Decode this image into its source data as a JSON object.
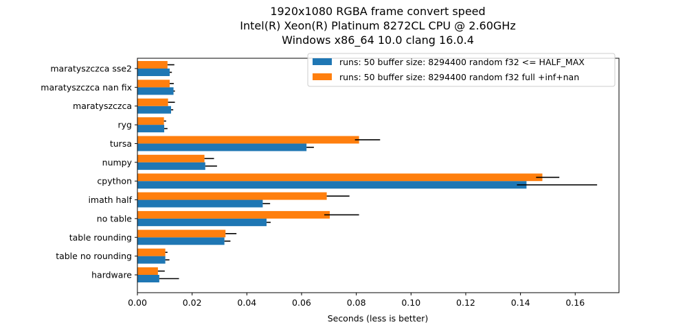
{
  "chart_data": {
    "type": "bar",
    "orientation": "horizontal",
    "title": [
      "1920x1080 RGBA frame convert speed",
      "Intel(R) Xeon(R) Platinum 8272CL CPU @ 2.60GHz",
      "Windows x86_64 10.0 clang 16.0.4"
    ],
    "xlabel": "Seconds (less is better)",
    "ylabel": "",
    "xlim": [
      0,
      0.176
    ],
    "xticks": [
      "0.00",
      "0.02",
      "0.04",
      "0.06",
      "0.08",
      "0.10",
      "0.12",
      "0.14",
      "0.16"
    ],
    "grid": false,
    "legend_position": "top-right",
    "categories": [
      "hardware",
      "table no rounding",
      "table rounding",
      "no table",
      "imath half",
      "cpython",
      "numpy",
      "tursa",
      "ryg",
      "maratyszczca",
      "maratyszczca nan fix",
      "maratyszczca sse2"
    ],
    "series": [
      {
        "name": "runs: 50 buffer size: 8294400 random f32 <= HALF_MAX",
        "color": "#1f77b4",
        "values": [
          0.008,
          0.0102,
          0.0318,
          0.0472,
          0.0458,
          0.1422,
          0.0248,
          0.0618,
          0.0098,
          0.0123,
          0.0132,
          0.0118
        ],
        "err_minus": [
          0.0,
          0.0,
          0.0,
          0.0,
          0.0,
          0.0035,
          0.0,
          0.0,
          0.0,
          0.0,
          0.0,
          0.0
        ],
        "err_plus": [
          0.0072,
          0.0015,
          0.0022,
          0.0015,
          0.0027,
          0.0258,
          0.0043,
          0.0027,
          0.0012,
          0.0008,
          0.0005,
          0.0008
        ]
      },
      {
        "name": "runs: 50 buffer size: 8294400 random f32 full +inf+nan",
        "color": "#ff7f0e",
        "values": [
          0.0075,
          0.0102,
          0.0322,
          0.0703,
          0.0692,
          0.148,
          0.0245,
          0.081,
          0.0097,
          0.0112,
          0.0118,
          0.011
        ],
        "err_minus": [
          0.0,
          0.0,
          0.0,
          0.002,
          0.0,
          0.0023,
          0.0,
          0.0015,
          0.0,
          0.0,
          0.0,
          0.0
        ],
        "err_plus": [
          0.0025,
          0.0008,
          0.004,
          0.0107,
          0.0083,
          0.0062,
          0.0035,
          0.0077,
          0.0008,
          0.0025,
          0.0015,
          0.0025
        ]
      }
    ]
  }
}
